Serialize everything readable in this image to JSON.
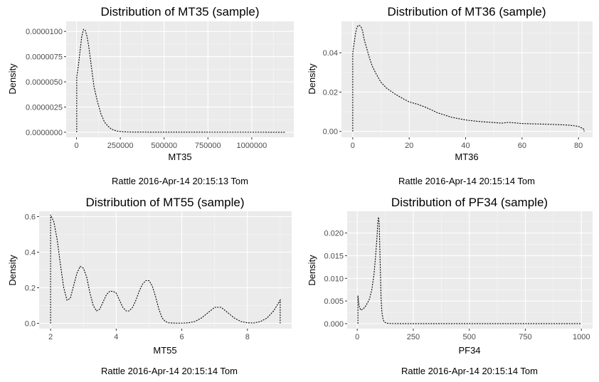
{
  "chart_data": [
    {
      "type": "line",
      "title": "Distribution of MT35 (sample)",
      "xlabel": "MT35",
      "ylabel": "Density",
      "caption": "Rattle 2016-Apr-14 20:15:13 Tom",
      "xlim": [
        -59000,
        1240000
      ],
      "ylim": [
        -5e-07,
        1.1e-05
      ],
      "xticks": [
        0,
        250000,
        500000,
        750000,
        1000000
      ],
      "xtick_labels": [
        "0",
        "250000",
        "500000",
        "750000",
        "1000000"
      ],
      "yticks": [
        0,
        2.5e-06,
        5e-06,
        7.5e-06,
        1e-05
      ],
      "ytick_labels": [
        "0.0000000",
        "0.0000025",
        "0.0000050",
        "0.0000075",
        "0.0000100"
      ],
      "series": [
        {
          "x": [
            1200,
            1200,
            10000,
            20000,
            30000,
            40000,
            50000,
            60000,
            70000,
            85000,
            100000,
            120000,
            140000,
            160000,
            180000,
            200000,
            230000,
            260000,
            300000,
            400000,
            600000,
            800000,
            1000000,
            1190000,
            1190000
          ],
          "y": [
            0,
            5.5e-06,
            6.5e-06,
            8e-06,
            9.5e-06,
            1.02e-05,
            1.01e-05,
            9.5e-06,
            8.5e-06,
            6.5e-06,
            4.5e-06,
            3e-06,
            1.8e-06,
            1e-06,
            6e-07,
            3e-07,
            1.2e-07,
            5e-08,
            2e-08,
            1e-08,
            5e-09,
            3e-09,
            2e-09,
            1e-09,
            0
          ]
        }
      ],
      "grid": true,
      "legend": "none"
    },
    {
      "type": "line",
      "title": "Distribution of MT36 (sample)",
      "xlabel": "MT36",
      "ylabel": "Density",
      "caption": "Rattle 2016-Apr-14 20:15:14 Tom",
      "xlim": [
        -4,
        85
      ],
      "ylim": [
        -0.003,
        0.056
      ],
      "xticks": [
        0,
        20,
        40,
        60,
        80
      ],
      "xtick_labels": [
        "0",
        "20",
        "40",
        "60",
        "80"
      ],
      "yticks": [
        0,
        0.02,
        0.04
      ],
      "ytick_labels": [
        "0.00",
        "0.02",
        "0.04"
      ],
      "series": [
        {
          "x": [
            0,
            0,
            0.5,
            1,
            1.5,
            2,
            2.5,
            3,
            3.5,
            4,
            5,
            6,
            7,
            8,
            10,
            12,
            15,
            18,
            20,
            23,
            26,
            30,
            35,
            40,
            45,
            50,
            53,
            55,
            58,
            60,
            65,
            70,
            75,
            78,
            80,
            81.5,
            82,
            82
          ],
          "y": [
            0,
            0.04,
            0.045,
            0.05,
            0.053,
            0.054,
            0.0538,
            0.053,
            0.051,
            0.047,
            0.042,
            0.037,
            0.033,
            0.03,
            0.025,
            0.022,
            0.019,
            0.0165,
            0.015,
            0.0138,
            0.0122,
            0.0095,
            0.0072,
            0.0058,
            0.005,
            0.0045,
            0.0042,
            0.0046,
            0.0043,
            0.004,
            0.0038,
            0.0036,
            0.0033,
            0.003,
            0.0025,
            0.0015,
            0.001,
            0
          ]
        }
      ],
      "grid": true,
      "legend": "none"
    },
    {
      "type": "line",
      "title": "Distribution of MT55 (sample)",
      "xlabel": "MT55",
      "ylabel": "Density",
      "caption": "Rattle 2016-Apr-14 20:15:14 Tom",
      "xlim": [
        1.65,
        9.35
      ],
      "ylim": [
        -0.03,
        0.63
      ],
      "xticks": [
        2,
        4,
        6,
        8
      ],
      "xtick_labels": [
        "2",
        "4",
        "6",
        "8"
      ],
      "yticks": [
        0,
        0.2,
        0.4,
        0.6
      ],
      "ytick_labels": [
        "0.0",
        "0.2",
        "0.4",
        "0.6"
      ],
      "series": [
        {
          "x": [
            2,
            2,
            2.1,
            2.2,
            2.3,
            2.4,
            2.5,
            2.6,
            2.7,
            2.8,
            2.9,
            3.0,
            3.1,
            3.2,
            3.3,
            3.4,
            3.5,
            3.6,
            3.7,
            3.8,
            3.9,
            4.0,
            4.1,
            4.2,
            4.3,
            4.4,
            4.5,
            4.6,
            4.7,
            4.8,
            4.9,
            5.0,
            5.1,
            5.2,
            5.3,
            5.4,
            5.5,
            5.6,
            5.8,
            6.0,
            6.2,
            6.4,
            6.6,
            6.8,
            7.0,
            7.2,
            7.4,
            7.6,
            7.8,
            8.0,
            8.2,
            8.4,
            8.6,
            8.8,
            9.0,
            9.0
          ],
          "y": [
            0,
            0.61,
            0.57,
            0.47,
            0.33,
            0.2,
            0.13,
            0.14,
            0.21,
            0.28,
            0.32,
            0.31,
            0.26,
            0.17,
            0.1,
            0.07,
            0.08,
            0.12,
            0.16,
            0.18,
            0.18,
            0.17,
            0.13,
            0.09,
            0.07,
            0.07,
            0.09,
            0.13,
            0.18,
            0.22,
            0.24,
            0.24,
            0.21,
            0.15,
            0.08,
            0.03,
            0.01,
            0.003,
            0.001,
            0.001,
            0.003,
            0.01,
            0.03,
            0.06,
            0.09,
            0.09,
            0.06,
            0.03,
            0.01,
            0.003,
            0.002,
            0.01,
            0.03,
            0.07,
            0.13,
            0
          ]
        }
      ],
      "grid": true,
      "legend": "none"
    },
    {
      "type": "line",
      "title": "Distribution of PF34 (sample)",
      "xlabel": "PF34",
      "ylabel": "Density",
      "caption": "Rattle 2016-Apr-14 20:15:14 Tom",
      "xlim": [
        -45,
        1050
      ],
      "ylim": [
        -0.0011,
        0.0248
      ],
      "xticks": [
        0,
        250,
        500,
        750,
        1000
      ],
      "xtick_labels": [
        "0",
        "250",
        "500",
        "750",
        "1000"
      ],
      "yticks": [
        0,
        0.005,
        0.01,
        0.015,
        0.02
      ],
      "ytick_labels": [
        "0.000",
        "0.005",
        "0.010",
        "0.015",
        "0.020"
      ],
      "series": [
        {
          "x": [
            3,
            3,
            8,
            15,
            25,
            35,
            45,
            55,
            65,
            75,
            82,
            88,
            92,
            95,
            98,
            100,
            103,
            106,
            110,
            115,
            120,
            130,
            150,
            200,
            300,
            500,
            700,
            900,
            1000,
            1000
          ],
          "y": [
            0,
            0.0062,
            0.004,
            0.003,
            0.0032,
            0.0037,
            0.0045,
            0.0055,
            0.0075,
            0.011,
            0.015,
            0.019,
            0.0225,
            0.0235,
            0.022,
            0.018,
            0.012,
            0.006,
            0.0025,
            0.001,
            0.0004,
            0.0001,
            2e-05,
            1e-05,
            1e-05,
            1e-05,
            1e-05,
            1e-05,
            1e-05,
            0
          ]
        }
      ],
      "grid": true,
      "legend": "none"
    }
  ]
}
